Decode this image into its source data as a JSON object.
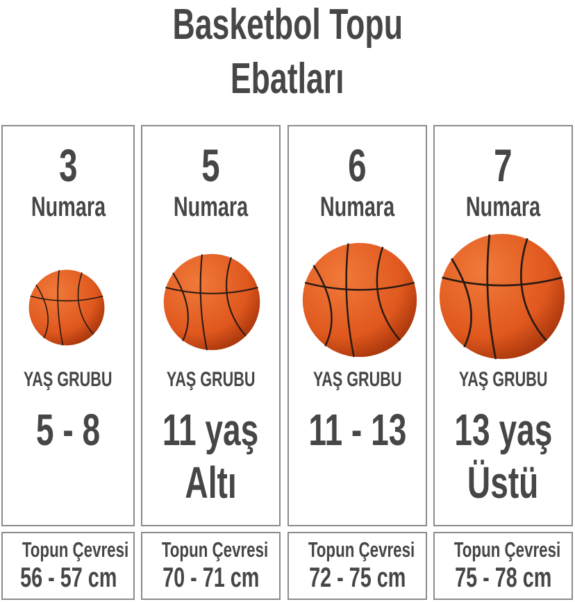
{
  "title": {
    "line1": "Basketbol Topu",
    "line2": "Ebatları"
  },
  "colors": {
    "text": "#464646",
    "border": "#8a8a8a",
    "ball": "#e0581e",
    "ball_seam": "#2a1a12"
  },
  "sizes": [
    {
      "number": "3",
      "number_label": "Numara",
      "age_label": "YAŞ GRUBU",
      "age_line1": "5 - 8",
      "age_line2": "",
      "circumference_label": "Topun Çevresi",
      "circumference": "56 - 57 cm"
    },
    {
      "number": "5",
      "number_label": "Numara",
      "age_label": "YAŞ GRUBU",
      "age_line1": "11 yaş",
      "age_line2": "Altı",
      "circumference_label": "Topun Çevresi",
      "circumference": "70 - 71 cm"
    },
    {
      "number": "6",
      "number_label": "Numara",
      "age_label": "YAŞ GRUBU",
      "age_line1": "11 - 13",
      "age_line2": "",
      "circumference_label": "Topun Çevresi",
      "circumference": "72 - 75 cm"
    },
    {
      "number": "7",
      "number_label": "Numara",
      "age_label": "YAŞ GRUBU",
      "age_line1": "13 yaş",
      "age_line2": "Üstü",
      "circumference_label": "Topun Çevresi",
      "circumference": "75 - 78 cm"
    }
  ]
}
